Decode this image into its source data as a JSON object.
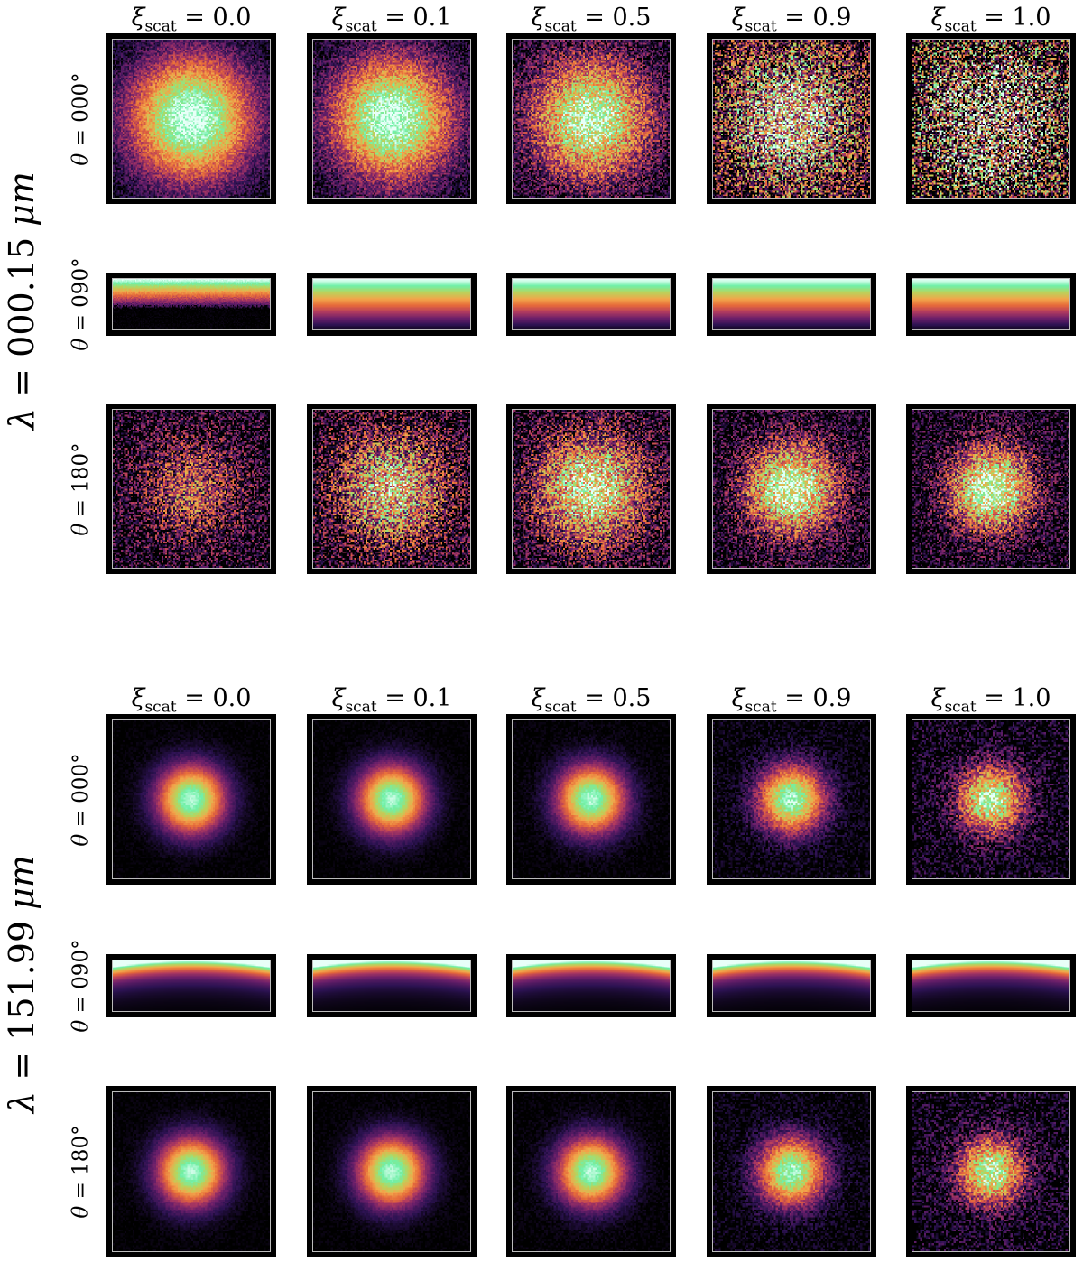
{
  "figure": {
    "colormap": [
      "#000000",
      "#2c1252",
      "#6b1f6a",
      "#b13a5f",
      "#e66a3a",
      "#f2a54a",
      "#b9d35b",
      "#6ff0a8",
      "#e8fff8"
    ],
    "column_labels": [
      {
        "symbol": "ξ",
        "sub": "scat",
        "eq": " = 0.0"
      },
      {
        "symbol": "ξ",
        "sub": "scat",
        "eq": " = 0.1"
      },
      {
        "symbol": "ξ",
        "sub": "scat",
        "eq": " = 0.5"
      },
      {
        "symbol": "ξ",
        "sub": "scat",
        "eq": " = 0.9"
      },
      {
        "symbol": "ξ",
        "sub": "scat",
        "eq": " = 1.0"
      }
    ],
    "row_labels": [
      {
        "symbol": "θ",
        "eq": " = 000°"
      },
      {
        "symbol": "θ",
        "eq": " = 090°"
      },
      {
        "symbol": "θ",
        "eq": " = 180°"
      }
    ],
    "blocks": [
      {
        "lambda_symbol": "λ",
        "value": " = 000.15 ",
        "unit": "μm"
      },
      {
        "lambda_symbol": "λ",
        "value": " = 151.99 ",
        "unit": "μm"
      }
    ]
  }
}
